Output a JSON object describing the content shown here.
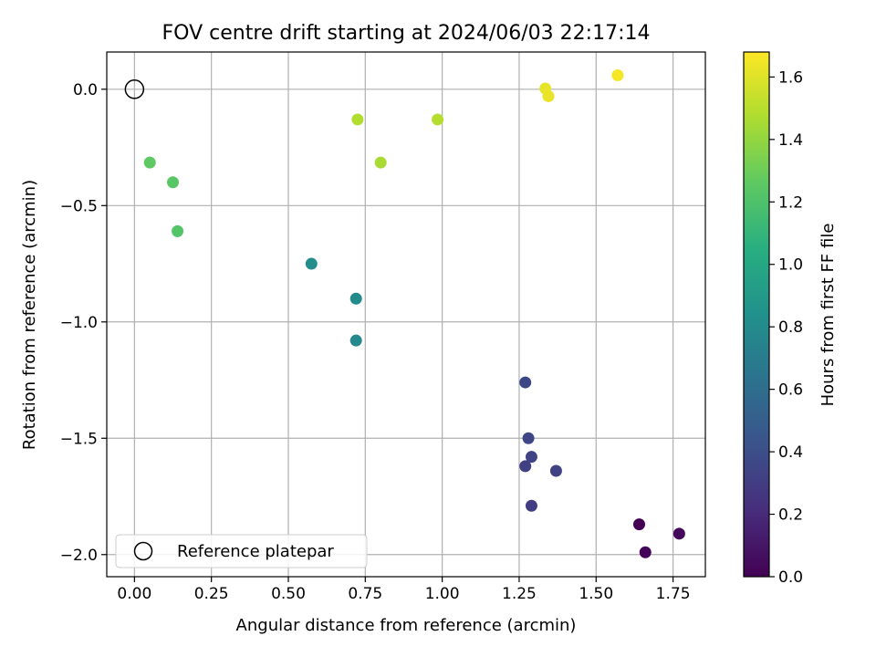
{
  "chart_data": {
    "type": "scatter",
    "title": "FOV centre drift starting at 2024/06/03 22:17:14",
    "xlabel": "Angular distance from reference (arcmin)",
    "ylabel": "Rotation from reference (arcmin)",
    "xlim": [
      -0.09,
      1.855
    ],
    "ylim": [
      -2.095,
      0.16
    ],
    "x_ticks": [
      0.0,
      0.25,
      0.5,
      0.75,
      1.0,
      1.25,
      1.5,
      1.75
    ],
    "x_tick_labels": [
      "0.00",
      "0.25",
      "0.50",
      "0.75",
      "1.00",
      "1.25",
      "1.50",
      "1.75"
    ],
    "y_ticks": [
      0.0,
      -0.5,
      -1.0,
      -1.5,
      -2.0
    ],
    "y_tick_labels": [
      "0.0",
      "−0.5",
      "−1.0",
      "−1.5",
      "−2.0"
    ],
    "grid": true,
    "legend_position": "lower-left",
    "reference": {
      "name": "Reference platepar",
      "x": 0.0,
      "y": 0.0,
      "marker": "open-circle"
    },
    "colorbar": {
      "label": "Hours from first FF file",
      "colormap": "viridis",
      "range": [
        0.0,
        1.68
      ],
      "ticks": [
        0.0,
        0.2,
        0.4,
        0.6,
        0.8,
        1.0,
        1.2,
        1.4,
        1.6
      ],
      "tick_labels": [
        "0.0",
        "0.2",
        "0.4",
        "0.6",
        "0.8",
        "1.0",
        "1.2",
        "1.4",
        "1.6"
      ]
    },
    "points": [
      {
        "x": 1.64,
        "y": -1.87,
        "t": 0.0
      },
      {
        "x": 1.66,
        "y": -1.99,
        "t": 0.02
      },
      {
        "x": 1.77,
        "y": -1.91,
        "t": 0.04
      },
      {
        "x": 1.29,
        "y": -1.79,
        "t": 0.3
      },
      {
        "x": 1.27,
        "y": -1.62,
        "t": 0.32
      },
      {
        "x": 1.37,
        "y": -1.64,
        "t": 0.33
      },
      {
        "x": 1.29,
        "y": -1.58,
        "t": 0.34
      },
      {
        "x": 1.28,
        "y": -1.5,
        "t": 0.35
      },
      {
        "x": 1.27,
        "y": -1.26,
        "t": 0.36
      },
      {
        "x": 0.72,
        "y": -1.08,
        "t": 0.78
      },
      {
        "x": 0.72,
        "y": -0.9,
        "t": 0.8
      },
      {
        "x": 0.575,
        "y": -0.75,
        "t": 0.82
      },
      {
        "x": 0.14,
        "y": -0.61,
        "t": 1.22
      },
      {
        "x": 0.125,
        "y": -0.4,
        "t": 1.24
      },
      {
        "x": 0.05,
        "y": -0.315,
        "t": 1.26
      },
      {
        "x": 0.8,
        "y": -0.315,
        "t": 1.46
      },
      {
        "x": 0.725,
        "y": -0.13,
        "t": 1.48
      },
      {
        "x": 0.985,
        "y": -0.13,
        "t": 1.49
      },
      {
        "x": 1.335,
        "y": 0.003,
        "t": 1.62
      },
      {
        "x": 1.345,
        "y": -0.03,
        "t": 1.63
      },
      {
        "x": 1.57,
        "y": 0.06,
        "t": 1.66
      }
    ]
  }
}
